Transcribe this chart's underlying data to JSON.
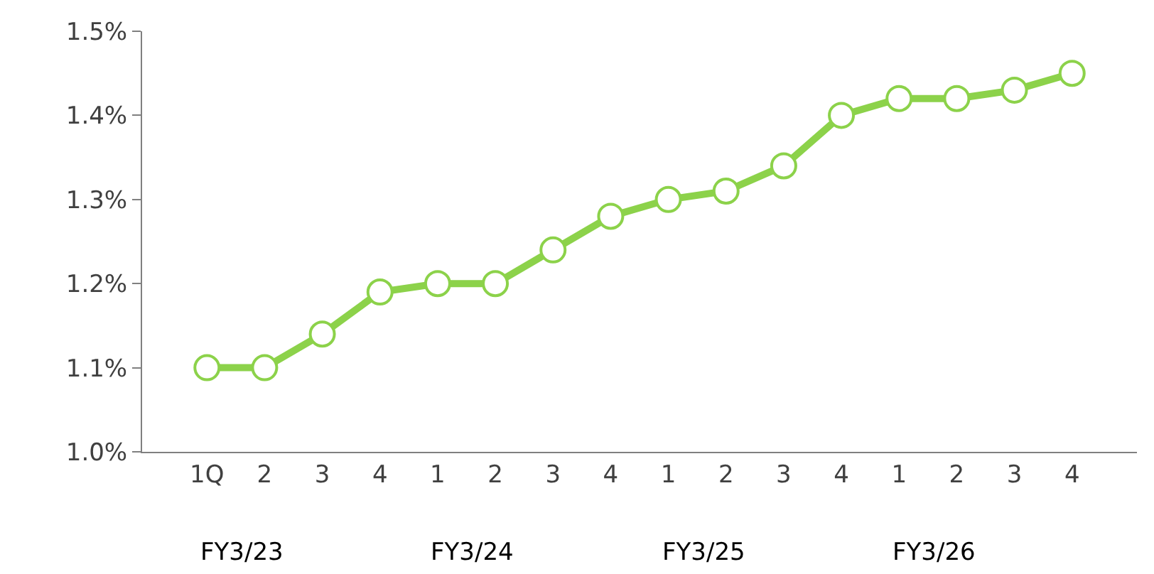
{
  "chart_data": {
    "type": "line",
    "categories": [
      "1Q",
      "2",
      "3",
      "4",
      "1",
      "2",
      "3",
      "4",
      "1",
      "2",
      "3",
      "4",
      "1",
      "2",
      "3",
      "4"
    ],
    "series": [
      {
        "color": "#8cd24a",
        "values": [
          1.1,
          1.1,
          1.14,
          1.19,
          1.2,
          1.2,
          1.24,
          1.28,
          1.3,
          1.31,
          1.34,
          1.4,
          1.42,
          1.42,
          1.43,
          1.45
        ]
      }
    ],
    "ylim": [
      1.0,
      1.5
    ],
    "yticks": [
      {
        "value": 1.0,
        "label": "1.0%"
      },
      {
        "value": 1.1,
        "label": "1.1%"
      },
      {
        "value": 1.2,
        "label": "1.2%"
      },
      {
        "value": 1.3,
        "label": "1.3%"
      },
      {
        "value": 1.4,
        "label": "1.4%"
      },
      {
        "value": 1.5,
        "label": "1.5%"
      }
    ],
    "annotations": [
      "FY3/23",
      "FY3/24",
      "FY3/25",
      "FY3/26"
    ],
    "marker": "circle",
    "line_style": "solid"
  }
}
